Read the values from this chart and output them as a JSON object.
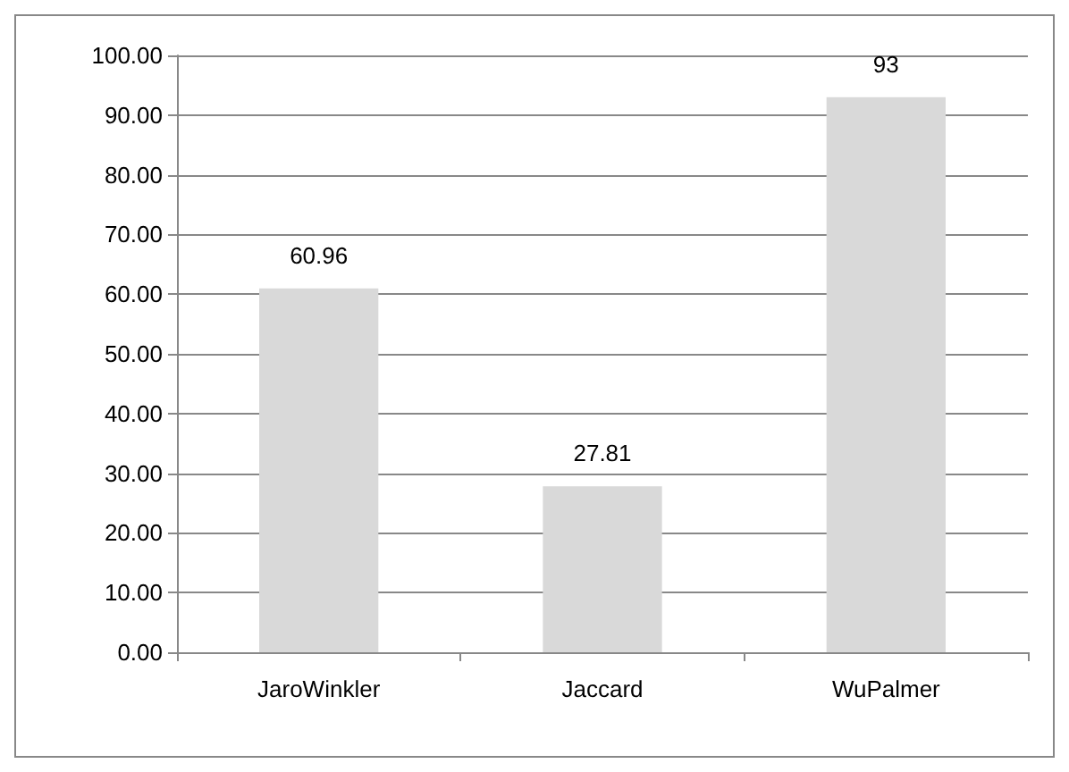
{
  "chart_data": {
    "type": "bar",
    "categories": [
      "JaroWinkler",
      "Jaccard",
      "WuPalmer"
    ],
    "values": [
      60.96,
      27.81,
      93
    ],
    "value_labels": [
      "60.96",
      "27.81",
      "93"
    ],
    "color": "#d9d9d9",
    "ylim": [
      0,
      100
    ],
    "yticks": [
      {
        "value": 0,
        "label": "0.00"
      },
      {
        "value": 10,
        "label": "10.00"
      },
      {
        "value": 20,
        "label": "20.00"
      },
      {
        "value": 30,
        "label": "30.00"
      },
      {
        "value": 40,
        "label": "40.00"
      },
      {
        "value": 50,
        "label": "50.00"
      },
      {
        "value": 60,
        "label": "60.00"
      },
      {
        "value": 70,
        "label": "70.00"
      },
      {
        "value": 80,
        "label": "80.00"
      },
      {
        "value": 90,
        "label": "90.00"
      },
      {
        "value": 100,
        "label": "100.00"
      }
    ],
    "grid": "y"
  }
}
